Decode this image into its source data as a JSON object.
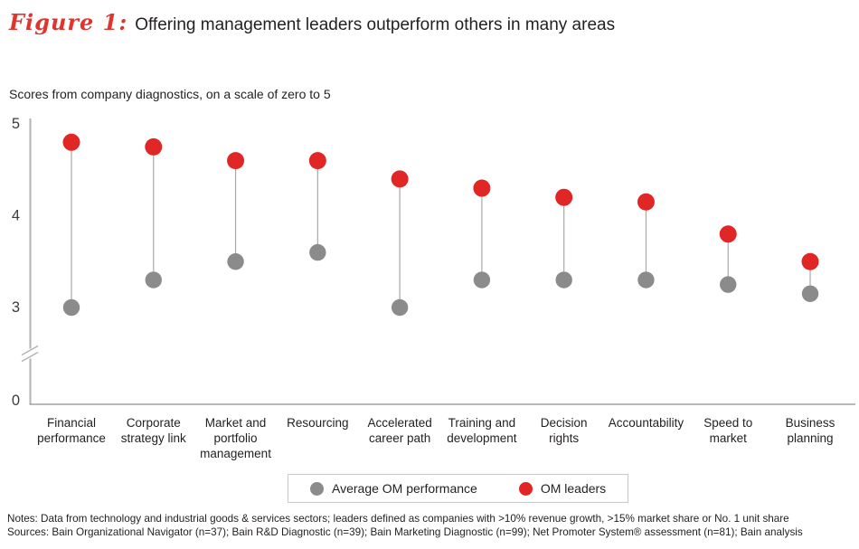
{
  "title": {
    "figure_label": "Figure 1:",
    "text": "Offering management leaders outperform others in many areas"
  },
  "subtitle": "Scores from company diagnostics, on a scale of zero to 5",
  "legend": {
    "items": [
      {
        "label": "Average OM performance",
        "series": "average"
      },
      {
        "label": "OM leaders",
        "series": "leaders"
      }
    ]
  },
  "footnotes": {
    "notes": "Notes: Data from technology and industrial goods & services sectors; leaders defined as companies with >10% revenue growth, >15% market share or No. 1 unit share",
    "sources": "Sources: Bain Organizational Navigator (n=37); Bain R&D Diagnostic (n=39); Bain Marketing Diagnostic (n=99); Net Promoter System® assessment (n=81); Bain analysis"
  },
  "colors": {
    "leaders_red": "#e12726",
    "average_gray": "#8b8b8b",
    "title_red": "#e0342f",
    "connector": "#a8a8a8",
    "y_axis": "#b2b2b2",
    "x_axis": "#8f8f8f",
    "tick_text": "#3c3c3c",
    "legend_border": "#c9c9c9"
  },
  "chart_data": {
    "type": "scatter",
    "subtype": "dumbbell",
    "title": "Offering management leaders outperform others in many areas",
    "ylabel": "Scores from company diagnostics, on a scale of zero to 5",
    "categories": [
      "Financial performance",
      "Corporate strategy link",
      "Market and portfolio management",
      "Resourcing",
      "Accelerated career path",
      "Training and development",
      "Decision rights",
      "Accountability",
      "Speed to market",
      "Business planning"
    ],
    "category_label_lines": [
      [
        "Financial",
        "performance"
      ],
      [
        "Corporate",
        "strategy link"
      ],
      [
        "Market and",
        "portfolio",
        "management"
      ],
      [
        "Resourcing"
      ],
      [
        "Accelerated",
        "career path"
      ],
      [
        "Training and",
        "development"
      ],
      [
        "Decision",
        "rights"
      ],
      [
        "Accountability"
      ],
      [
        "Speed to",
        "market"
      ],
      [
        "Business",
        "planning"
      ]
    ],
    "series": [
      {
        "name": "Average OM performance",
        "color": "#8b8b8b",
        "values": [
          3.0,
          3.3,
          3.5,
          3.6,
          3.0,
          3.3,
          3.3,
          3.3,
          3.25,
          3.15
        ]
      },
      {
        "name": "OM leaders",
        "color": "#e12726",
        "values": [
          4.8,
          4.75,
          4.6,
          4.6,
          4.4,
          4.3,
          4.2,
          4.15,
          3.8,
          3.5
        ]
      }
    ],
    "ylim": [
      0,
      5
    ],
    "yticks": [
      0,
      3,
      4,
      5
    ],
    "axis_break_between": [
      0,
      3
    ],
    "grid": false,
    "legend_position": "bottom-center"
  }
}
